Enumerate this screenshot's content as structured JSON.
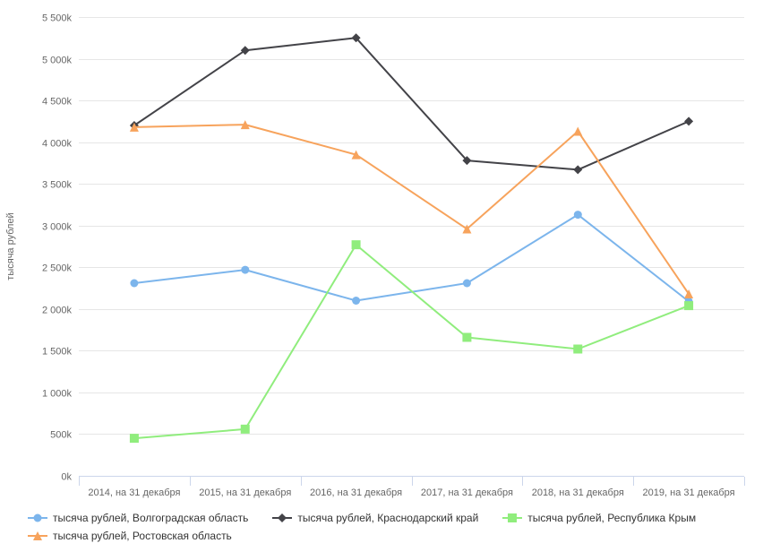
{
  "chart_data": {
    "type": "line",
    "title": "",
    "ylabel": "тысяча рублей",
    "xlabel": "",
    "ylim": [
      0,
      5500
    ],
    "ytick_step": 500,
    "ytick_labels": [
      "0k",
      "500k",
      "1 000k",
      "1 500k",
      "2 000k",
      "2 500k",
      "3 000k",
      "3 500k",
      "4 000k",
      "4 500k",
      "5 000k",
      "5 500k"
    ],
    "values_unit": "k",
    "grid": true,
    "legend_position": "bottom-left",
    "categories": [
      "2014, на 31 декабря",
      "2015, на 31 декабря",
      "2016, на 31 декабря",
      "2017, на 31 декабря",
      "2018, на 31 декабря",
      "2019, на 31 декабря"
    ],
    "series": [
      {
        "name": "тысяча рублей, Волгоградская область",
        "color": "#7cb5ec",
        "marker": "circle",
        "values": [
          2310,
          2470,
          2100,
          2310,
          3130,
          2090
        ]
      },
      {
        "name": "тысяча рублей, Краснодарский край",
        "color": "#434348",
        "marker": "diamond",
        "values": [
          4200,
          5100,
          5250,
          3780,
          3670,
          4250
        ]
      },
      {
        "name": "тысяча рублей, Республика Крым",
        "color": "#90ed7d",
        "marker": "square",
        "values": [
          450,
          560,
          2770,
          1660,
          1520,
          2040
        ]
      },
      {
        "name": "тысяча рублей, Ростовская область",
        "color": "#f7a35c",
        "marker": "triangle",
        "values": [
          4180,
          4210,
          3850,
          2960,
          4130,
          2180
        ]
      }
    ],
    "colors": {
      "gridline": "#e6e6e6",
      "axis_line": "#ccd6eb",
      "tick_text": "#666666",
      "axis_title_text": "#666666",
      "legend_text": "#333333"
    }
  }
}
